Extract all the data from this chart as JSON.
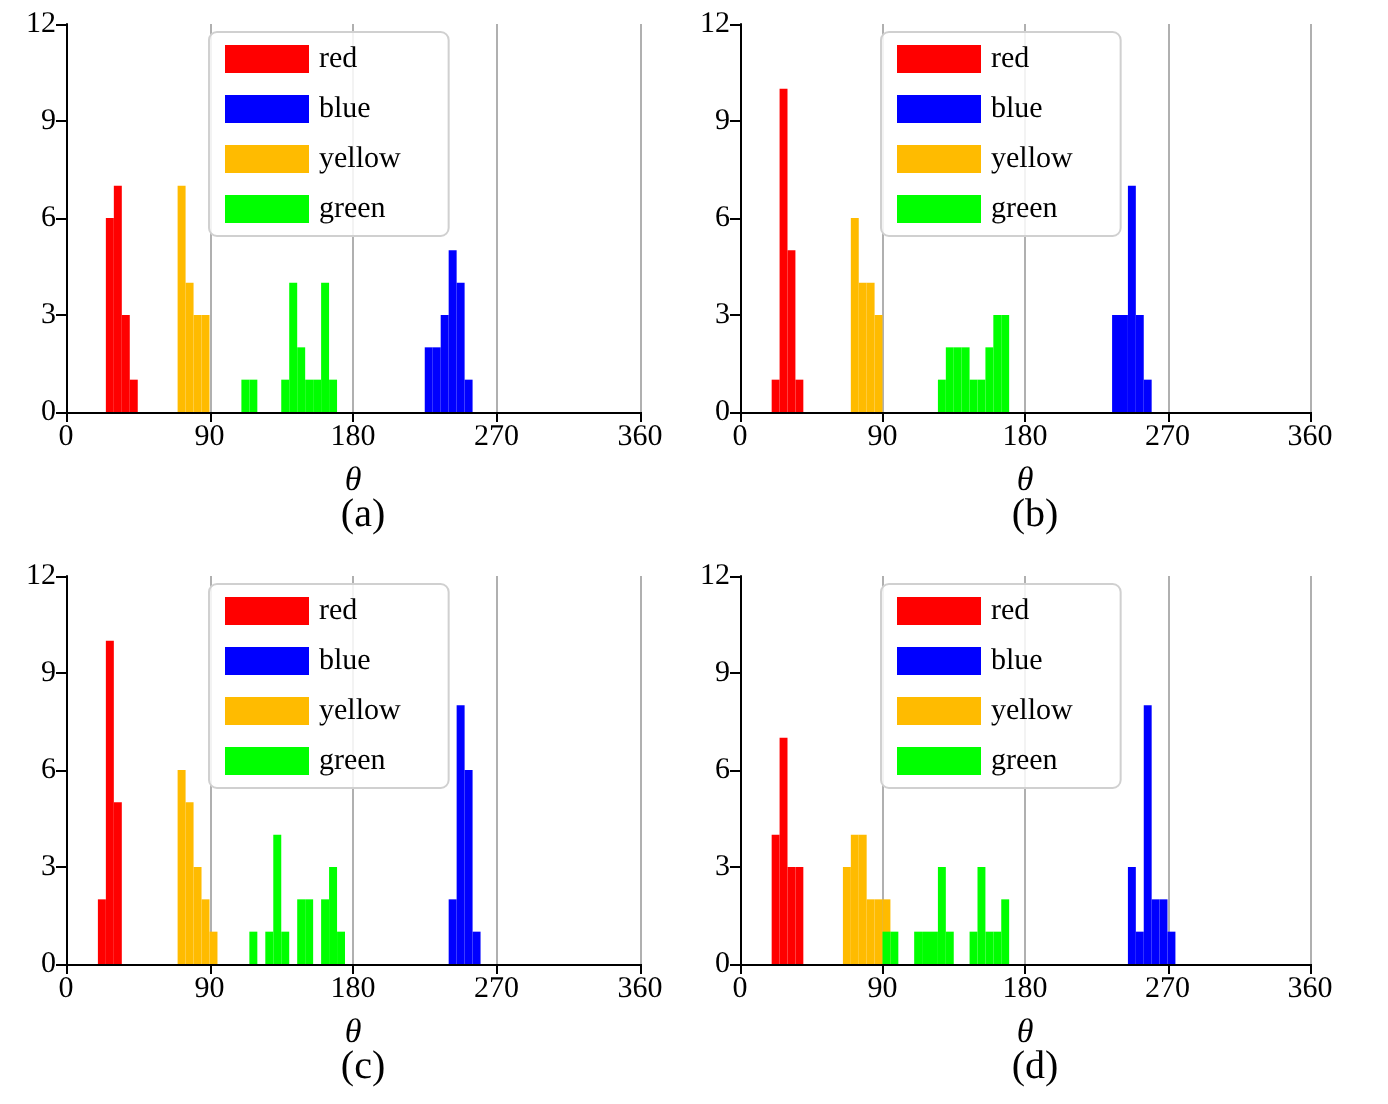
{
  "chart_data": [
    {
      "type": "histogram",
      "title": "(a)",
      "xlabel": "θ",
      "xlim": [
        0,
        360
      ],
      "xticks": [
        0,
        90,
        180,
        270,
        360
      ],
      "ylim": [
        0,
        12
      ],
      "yticks": [
        0,
        3,
        6,
        9,
        12
      ],
      "grid": "x",
      "legend": "top",
      "bins": [
        25,
        30,
        35,
        40,
        45,
        50,
        55,
        60,
        65,
        70,
        75,
        80,
        85,
        90,
        95,
        100,
        105,
        110,
        115,
        120,
        125,
        130,
        135,
        140,
        145,
        150,
        155,
        160,
        165,
        170,
        175,
        180,
        185,
        190,
        195,
        200,
        205,
        210,
        215,
        220,
        225,
        230,
        235,
        240,
        245,
        250,
        255
      ],
      "series": [
        {
          "name": "red",
          "color": "#ff0000",
          "values": [
            6,
            7,
            3,
            1,
            0,
            0,
            0,
            0,
            0,
            0,
            0,
            0,
            0,
            0,
            0,
            0,
            0,
            0,
            0,
            0,
            0,
            0,
            0,
            0,
            0,
            0,
            0,
            0,
            0,
            0,
            0,
            0,
            0,
            0,
            0,
            0,
            0,
            0,
            0,
            0,
            0,
            0,
            0,
            0,
            0,
            0
          ]
        },
        {
          "name": "blue",
          "color": "#0000ff",
          "values": [
            0,
            0,
            0,
            0,
            0,
            0,
            0,
            0,
            0,
            0,
            0,
            0,
            0,
            0,
            0,
            0,
            0,
            0,
            0,
            0,
            0,
            0,
            0,
            0,
            0,
            0,
            0,
            0,
            0,
            0,
            0,
            0,
            0,
            0,
            0,
            0,
            0,
            0,
            0,
            0,
            2,
            2,
            3,
            5,
            4,
            1
          ]
        },
        {
          "name": "yellow",
          "color": "#ffbb00",
          "values": [
            0,
            0,
            0,
            0,
            0,
            0,
            0,
            0,
            0,
            7,
            4,
            3,
            3,
            0,
            0,
            0,
            0,
            0,
            0,
            0,
            0,
            0,
            0,
            0,
            0,
            0,
            0,
            0,
            0,
            0,
            0,
            0,
            0,
            0,
            0,
            0,
            0,
            0,
            0,
            0,
            0,
            0,
            0,
            0,
            0,
            0
          ]
        },
        {
          "name": "green",
          "color": "#00ff00",
          "values": [
            0,
            0,
            0,
            0,
            0,
            0,
            0,
            0,
            0,
            0,
            0,
            0,
            0,
            0,
            0,
            0,
            0,
            1,
            1,
            0,
            0,
            0,
            1,
            4,
            2,
            1,
            1,
            4,
            1,
            0,
            0,
            0,
            0,
            0,
            0,
            0,
            0,
            0,
            0,
            0,
            0,
            0,
            0,
            0,
            0,
            0
          ]
        }
      ]
    },
    {
      "type": "histogram",
      "title": "(b)",
      "xlabel": "θ",
      "xlim": [
        0,
        360
      ],
      "xticks": [
        0,
        90,
        180,
        270,
        360
      ],
      "ylim": [
        0,
        12
      ],
      "yticks": [
        0,
        3,
        6,
        9,
        12
      ],
      "grid": "x",
      "legend": "top",
      "bins": [
        20,
        25,
        30,
        35,
        40,
        45,
        50,
        55,
        60,
        65,
        70,
        75,
        80,
        85,
        90,
        95,
        100,
        105,
        110,
        115,
        120,
        125,
        130,
        135,
        140,
        145,
        150,
        155,
        160,
        165,
        170,
        175,
        180,
        185,
        190,
        195,
        200,
        205,
        210,
        215,
        220,
        225,
        230,
        235,
        240,
        245,
        250,
        255,
        260
      ],
      "series": [
        {
          "name": "red",
          "color": "#ff0000",
          "values": [
            1,
            10,
            5,
            1,
            0,
            0,
            0,
            0,
            0,
            0,
            0,
            0,
            0,
            0,
            0,
            0,
            0,
            0,
            0,
            0,
            0,
            0,
            0,
            0,
            0,
            0,
            0,
            0,
            0,
            0,
            0,
            0,
            0,
            0,
            0,
            0,
            0,
            0,
            0,
            0,
            0,
            0,
            0,
            0,
            0,
            0,
            0,
            0
          ]
        },
        {
          "name": "blue",
          "color": "#0000ff",
          "values": [
            0,
            0,
            0,
            0,
            0,
            0,
            0,
            0,
            0,
            0,
            0,
            0,
            0,
            0,
            0,
            0,
            0,
            0,
            0,
            0,
            0,
            0,
            0,
            0,
            0,
            0,
            0,
            0,
            0,
            0,
            0,
            0,
            0,
            0,
            0,
            0,
            0,
            0,
            0,
            0,
            0,
            0,
            0,
            3,
            3,
            7,
            3,
            1
          ]
        },
        {
          "name": "yellow",
          "color": "#ffbb00",
          "values": [
            0,
            0,
            0,
            0,
            0,
            0,
            0,
            0,
            0,
            0,
            6,
            4,
            4,
            3,
            0,
            0,
            0,
            0,
            0,
            0,
            0,
            0,
            0,
            0,
            0,
            0,
            0,
            0,
            0,
            0,
            0,
            0,
            0,
            0,
            0,
            0,
            0,
            0,
            0,
            0,
            0,
            0,
            0,
            0,
            0,
            0,
            0,
            0
          ]
        },
        {
          "name": "green",
          "color": "#00ff00",
          "values": [
            0,
            0,
            0,
            0,
            0,
            0,
            0,
            0,
            0,
            0,
            0,
            0,
            0,
            0,
            0,
            0,
            0,
            0,
            0,
            0,
            0,
            1,
            2,
            2,
            2,
            1,
            1,
            2,
            3,
            3,
            0,
            0,
            0,
            0,
            0,
            0,
            0,
            0,
            0,
            0,
            0,
            0,
            0,
            0,
            0,
            0,
            0,
            0
          ]
        }
      ]
    },
    {
      "type": "histogram",
      "title": "(c)",
      "xlabel": "θ",
      "xlim": [
        0,
        360
      ],
      "xticks": [
        0,
        90,
        180,
        270,
        360
      ],
      "ylim": [
        0,
        12
      ],
      "yticks": [
        0,
        3,
        6,
        9,
        12
      ],
      "grid": "x",
      "legend": "top",
      "bins": [
        20,
        25,
        30,
        35,
        40,
        45,
        50,
        55,
        60,
        65,
        70,
        75,
        80,
        85,
        90,
        95,
        100,
        105,
        110,
        115,
        120,
        125,
        130,
        135,
        140,
        145,
        150,
        155,
        160,
        165,
        170,
        175,
        180,
        185,
        190,
        195,
        200,
        205,
        210,
        215,
        220,
        225,
        230,
        235,
        240,
        245,
        250,
        255,
        260
      ],
      "series": [
        {
          "name": "red",
          "color": "#ff0000",
          "values": [
            2,
            10,
            5,
            0,
            0,
            0,
            0,
            0,
            0,
            0,
            0,
            0,
            0,
            0,
            0,
            0,
            0,
            0,
            0,
            0,
            0,
            0,
            0,
            0,
            0,
            0,
            0,
            0,
            0,
            0,
            0,
            0,
            0,
            0,
            0,
            0,
            0,
            0,
            0,
            0,
            0,
            0,
            0,
            0,
            0,
            0,
            0,
            0
          ]
        },
        {
          "name": "blue",
          "color": "#0000ff",
          "values": [
            0,
            0,
            0,
            0,
            0,
            0,
            0,
            0,
            0,
            0,
            0,
            0,
            0,
            0,
            0,
            0,
            0,
            0,
            0,
            0,
            0,
            0,
            0,
            0,
            0,
            0,
            0,
            0,
            0,
            0,
            0,
            0,
            0,
            0,
            0,
            0,
            0,
            0,
            0,
            0,
            0,
            0,
            0,
            0,
            2,
            8,
            6,
            1
          ]
        },
        {
          "name": "yellow",
          "color": "#ffbb00",
          "values": [
            0,
            0,
            0,
            0,
            0,
            0,
            0,
            0,
            0,
            0,
            6,
            5,
            3,
            2,
            1,
            0,
            0,
            0,
            0,
            0,
            0,
            0,
            0,
            0,
            0,
            0,
            0,
            0,
            0,
            0,
            0,
            0,
            0,
            0,
            0,
            0,
            0,
            0,
            0,
            0,
            0,
            0,
            0,
            0,
            0,
            0,
            0,
            0
          ]
        },
        {
          "name": "green",
          "color": "#00ff00",
          "values": [
            0,
            0,
            0,
            0,
            0,
            0,
            0,
            0,
            0,
            0,
            0,
            0,
            0,
            0,
            0,
            0,
            0,
            0,
            0,
            1,
            0,
            1,
            4,
            1,
            0,
            2,
            2,
            0,
            2,
            3,
            1,
            0,
            0,
            0,
            0,
            0,
            0,
            0,
            0,
            0,
            0,
            0,
            0,
            0,
            0,
            0,
            0,
            0
          ]
        }
      ]
    },
    {
      "type": "histogram",
      "title": "(d)",
      "xlabel": "θ",
      "xlim": [
        0,
        360
      ],
      "xticks": [
        0,
        90,
        180,
        270,
        360
      ],
      "ylim": [
        0,
        12
      ],
      "yticks": [
        0,
        3,
        6,
        9,
        12
      ],
      "grid": "x",
      "legend": "top",
      "bins": [
        20,
        25,
        30,
        35,
        40,
        45,
        50,
        55,
        60,
        65,
        70,
        75,
        80,
        85,
        90,
        95,
        100,
        105,
        110,
        115,
        120,
        125,
        130,
        135,
        140,
        145,
        150,
        155,
        160,
        165,
        170,
        175,
        180,
        185,
        190,
        195,
        200,
        205,
        210,
        215,
        220,
        225,
        230,
        235,
        240,
        245,
        250,
        255,
        260,
        265,
        270,
        275
      ],
      "series": [
        {
          "name": "red",
          "color": "#ff0000",
          "values": [
            4,
            7,
            3,
            3,
            0,
            0,
            0,
            0,
            0,
            0,
            0,
            0,
            0,
            0,
            0,
            0,
            0,
            0,
            0,
            0,
            0,
            0,
            0,
            0,
            0,
            0,
            0,
            0,
            0,
            0,
            0,
            0,
            0,
            0,
            0,
            0,
            0,
            0,
            0,
            0,
            0,
            0,
            0,
            0,
            0,
            0,
            0,
            0,
            0,
            0,
            0
          ]
        },
        {
          "name": "blue",
          "color": "#0000ff",
          "values": [
            0,
            0,
            0,
            0,
            0,
            0,
            0,
            0,
            0,
            0,
            0,
            0,
            0,
            0,
            0,
            0,
            0,
            0,
            0,
            0,
            0,
            0,
            0,
            0,
            0,
            0,
            0,
            0,
            0,
            0,
            0,
            0,
            0,
            0,
            0,
            0,
            0,
            0,
            0,
            0,
            0,
            0,
            0,
            0,
            0,
            3,
            1,
            8,
            2,
            2,
            1
          ]
        },
        {
          "name": "yellow",
          "color": "#ffbb00",
          "values": [
            0,
            0,
            0,
            0,
            0,
            0,
            0,
            0,
            0,
            3,
            4,
            4,
            2,
            2,
            2,
            0,
            0,
            0,
            0,
            0,
            0,
            0,
            0,
            0,
            0,
            0,
            0,
            0,
            0,
            0,
            0,
            0,
            0,
            0,
            0,
            0,
            0,
            0,
            0,
            0,
            0,
            0,
            0,
            0,
            0,
            0,
            0,
            0,
            0,
            0,
            0
          ]
        },
        {
          "name": "green",
          "color": "#00ff00",
          "values": [
            0,
            0,
            0,
            0,
            0,
            0,
            0,
            0,
            0,
            0,
            0,
            0,
            0,
            0,
            1,
            1,
            0,
            0,
            1,
            1,
            1,
            3,
            1,
            0,
            0,
            1,
            3,
            1,
            1,
            2,
            0,
            0,
            0,
            0,
            0,
            0,
            0,
            0,
            0,
            0,
            0,
            0,
            0,
            0,
            0,
            0,
            0,
            0,
            0,
            0,
            0
          ]
        }
      ]
    }
  ]
}
